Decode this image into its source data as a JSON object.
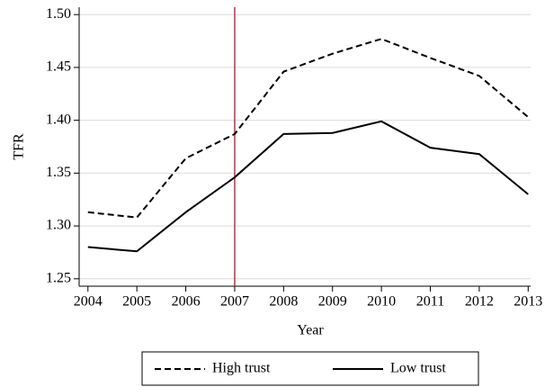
{
  "chart_data": {
    "type": "line",
    "x": [
      2004,
      2005,
      2006,
      2007,
      2008,
      2009,
      2010,
      2011,
      2012,
      2013
    ],
    "xlim": [
      2003.82,
      2013.05
    ],
    "xticks": [
      2004,
      2005,
      2006,
      2007,
      2008,
      2009,
      2010,
      2011,
      2012,
      2013
    ],
    "ylim": [
      1.243,
      1.507
    ],
    "yticks": [
      {
        "value": 1.25,
        "label": "1.25"
      },
      {
        "value": 1.3,
        "label": "1.30"
      },
      1.35,
      {
        "value": 1.4,
        "label": "1.40"
      },
      1.45,
      {
        "value": 1.5,
        "label": "1.50"
      }
    ],
    "xlabel": "Year",
    "ylabel": "TFR",
    "grid": true,
    "vline": {
      "x": 2007,
      "color": "#c0304a"
    },
    "series": [
      {
        "name": "High trust",
        "color": "#000000",
        "dash": true,
        "values": [
          1.313,
          1.308,
          1.364,
          1.387,
          1.446,
          1.463,
          1.477,
          1.459,
          1.442,
          1.403
        ]
      },
      {
        "name": "Low trust",
        "color": "#000000",
        "dash": false,
        "values": [
          1.28,
          1.276,
          1.313,
          1.346,
          1.387,
          1.388,
          1.399,
          1.374,
          1.368,
          1.33
        ]
      }
    ]
  }
}
